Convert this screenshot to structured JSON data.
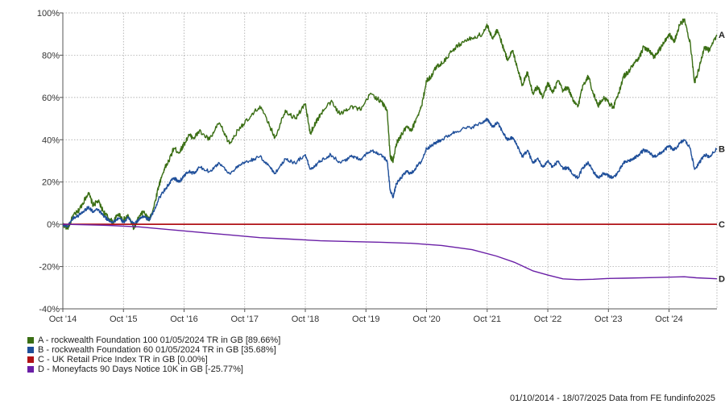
{
  "chart_data": {
    "type": "line",
    "title": "",
    "xlabel": "",
    "ylabel": "",
    "ylim": [
      -40,
      100
    ],
    "y_ticks": [
      -40,
      -20,
      0,
      20,
      40,
      60,
      80,
      100
    ],
    "y_tick_labels": [
      "-40%",
      "-20%",
      "0%",
      "20%",
      "40%",
      "60%",
      "80%",
      "100%"
    ],
    "x_ticks": [
      {
        "year": 2014.75,
        "label": "Oct '14"
      },
      {
        "year": 2015.75,
        "label": "Oct '15"
      },
      {
        "year": 2016.75,
        "label": "Oct '16"
      },
      {
        "year": 2017.75,
        "label": "Oct '17"
      },
      {
        "year": 2018.75,
        "label": "Oct '18"
      },
      {
        "year": 2019.75,
        "label": "Oct '19"
      },
      {
        "year": 2020.75,
        "label": "Oct '20"
      },
      {
        "year": 2021.75,
        "label": "Oct '21"
      },
      {
        "year": 2022.75,
        "label": "Oct '22"
      },
      {
        "year": 2023.75,
        "label": "Oct '23"
      },
      {
        "year": 2024.75,
        "label": "Oct '24"
      }
    ],
    "xlim": [
      2014.75,
      2025.54
    ],
    "grid": true,
    "legend_position": "bottom-left",
    "series": [
      {
        "name": "A - rockwealth Foundation 100 01/05/2024 TR in GB [89.66%]",
        "end_label": "A",
        "color": "#3a6e14",
        "x": [
          2014.75,
          2014.83,
          2014.92,
          2015.0,
          2015.08,
          2015.17,
          2015.25,
          2015.33,
          2015.42,
          2015.5,
          2015.58,
          2015.67,
          2015.75,
          2015.83,
          2015.92,
          2016.0,
          2016.08,
          2016.17,
          2016.25,
          2016.33,
          2016.42,
          2016.5,
          2016.58,
          2016.67,
          2016.75,
          2016.83,
          2016.92,
          2017.0,
          2017.17,
          2017.33,
          2017.5,
          2017.67,
          2017.83,
          2018.0,
          2018.17,
          2018.25,
          2018.42,
          2018.58,
          2018.75,
          2018.83,
          2018.92,
          2019.0,
          2019.17,
          2019.33,
          2019.5,
          2019.67,
          2019.83,
          2020.0,
          2020.1,
          2020.15,
          2020.2,
          2020.25,
          2020.33,
          2020.42,
          2020.5,
          2020.58,
          2020.67,
          2020.75,
          2020.83,
          2020.92,
          2021.0,
          2021.17,
          2021.33,
          2021.5,
          2021.67,
          2021.75,
          2021.83,
          2021.92,
          2022.0,
          2022.08,
          2022.17,
          2022.25,
          2022.33,
          2022.42,
          2022.5,
          2022.58,
          2022.67,
          2022.75,
          2022.83,
          2022.92,
          2023.0,
          2023.08,
          2023.17,
          2023.25,
          2023.33,
          2023.42,
          2023.5,
          2023.58,
          2023.67,
          2023.75,
          2023.83,
          2023.92,
          2024.0,
          2024.08,
          2024.17,
          2024.25,
          2024.33,
          2024.42,
          2024.5,
          2024.58,
          2024.67,
          2024.75,
          2024.83,
          2024.92,
          2025.0,
          2025.1,
          2025.17,
          2025.25,
          2025.33,
          2025.42,
          2025.54
        ],
        "y": [
          0,
          -2,
          4,
          6,
          10,
          15,
          9,
          11,
          6,
          3,
          1,
          5,
          2,
          4,
          -2,
          3,
          6,
          2,
          8,
          18,
          26,
          30,
          36,
          34,
          38,
          42,
          41,
          44,
          40,
          48,
          38,
          46,
          50,
          56,
          46,
          41,
          54,
          50,
          57,
          43,
          48,
          52,
          58,
          52,
          56,
          54,
          62,
          58,
          54,
          32,
          30,
          38,
          42,
          46,
          44,
          50,
          56,
          68,
          70,
          75,
          76,
          82,
          86,
          88,
          90,
          94,
          88,
          92,
          85,
          78,
          82,
          74,
          66,
          72,
          62,
          65,
          60,
          67,
          62,
          68,
          63,
          65,
          58,
          56,
          66,
          70,
          62,
          56,
          60,
          58,
          55,
          62,
          70,
          72,
          76,
          78,
          84,
          82,
          79,
          82,
          86,
          90,
          86,
          94,
          97,
          86,
          67,
          74,
          84,
          82,
          89.66
        ]
      },
      {
        "name": "B - rockwealth Foundation 60 01/05/2024 TR in GB [35.68%]",
        "end_label": "B",
        "color": "#1f4f9a",
        "x": [
          2014.75,
          2014.83,
          2014.92,
          2015.0,
          2015.08,
          2015.17,
          2015.25,
          2015.33,
          2015.42,
          2015.5,
          2015.58,
          2015.67,
          2015.75,
          2015.83,
          2015.92,
          2016.0,
          2016.08,
          2016.17,
          2016.25,
          2016.33,
          2016.42,
          2016.5,
          2016.58,
          2016.67,
          2016.75,
          2016.83,
          2016.92,
          2017.0,
          2017.17,
          2017.33,
          2017.5,
          2017.67,
          2017.83,
          2018.0,
          2018.17,
          2018.25,
          2018.42,
          2018.58,
          2018.75,
          2018.83,
          2018.92,
          2019.0,
          2019.17,
          2019.33,
          2019.5,
          2019.67,
          2019.83,
          2020.0,
          2020.1,
          2020.15,
          2020.2,
          2020.25,
          2020.33,
          2020.42,
          2020.5,
          2020.58,
          2020.67,
          2020.75,
          2020.83,
          2020.92,
          2021.0,
          2021.17,
          2021.33,
          2021.5,
          2021.67,
          2021.75,
          2021.83,
          2021.92,
          2022.0,
          2022.08,
          2022.17,
          2022.25,
          2022.33,
          2022.42,
          2022.5,
          2022.58,
          2022.67,
          2022.75,
          2022.83,
          2022.92,
          2023.0,
          2023.08,
          2023.17,
          2023.25,
          2023.33,
          2023.42,
          2023.5,
          2023.58,
          2023.67,
          2023.75,
          2023.83,
          2023.92,
          2024.0,
          2024.08,
          2024.17,
          2024.25,
          2024.33,
          2024.42,
          2024.5,
          2024.58,
          2024.67,
          2024.75,
          2024.83,
          2024.92,
          2025.0,
          2025.1,
          2025.17,
          2025.25,
          2025.33,
          2025.42,
          2025.54
        ],
        "y": [
          0,
          -1,
          3,
          4,
          6,
          8,
          6,
          7,
          4,
          2,
          1,
          3,
          1,
          3,
          0,
          2,
          4,
          2,
          6,
          12,
          16,
          19,
          22,
          20,
          23,
          25,
          24,
          27,
          25,
          29,
          24,
          28,
          30,
          32,
          27,
          24,
          31,
          29,
          33,
          26,
          28,
          30,
          33,
          29,
          32,
          31,
          35,
          33,
          30,
          16,
          13,
          19,
          22,
          25,
          24,
          27,
          30,
          36,
          37,
          39,
          40,
          43,
          45,
          46,
          48,
          50,
          46,
          48,
          44,
          40,
          41,
          37,
          32,
          35,
          29,
          31,
          27,
          30,
          27,
          30,
          26,
          27,
          23,
          22,
          27,
          29,
          25,
          22,
          24,
          23,
          22,
          25,
          29,
          30,
          31,
          33,
          35,
          34,
          32,
          33,
          35,
          37,
          35,
          38,
          40,
          36,
          26,
          29,
          33,
          32,
          35.68
        ]
      },
      {
        "name": "C - UK Retail Price Index TR in GB [0.00%]",
        "end_label": "C",
        "color": "#b01217",
        "x": [
          2014.75,
          2025.54
        ],
        "y": [
          0,
          0
        ]
      },
      {
        "name": "D - Moneyfacts 90 Days Notice 10K in GB [-25.77%]",
        "end_label": "D",
        "color": "#6a1fa6",
        "x": [
          2014.75,
          2015.5,
          2016.0,
          2016.5,
          2017.0,
          2017.5,
          2018.0,
          2018.5,
          2019.0,
          2019.5,
          2020.0,
          2020.5,
          2021.0,
          2021.5,
          2021.9,
          2022.2,
          2022.5,
          2022.75,
          2023.0,
          2023.25,
          2023.5,
          2023.75,
          2024.0,
          2024.5,
          2025.0,
          2025.2,
          2025.54
        ],
        "y": [
          0,
          -0.5,
          -1.2,
          -2.5,
          -3.8,
          -5,
          -6.3,
          -7,
          -7.8,
          -8.2,
          -8.5,
          -9,
          -10,
          -12,
          -15,
          -18,
          -22,
          -24,
          -25.8,
          -26.2,
          -26,
          -25.6,
          -25.5,
          -25.2,
          -24.8,
          -25.3,
          -25.77
        ]
      }
    ]
  },
  "footer_text": "01/10/2014 - 18/07/2025 Data from FE fundinfo2025"
}
